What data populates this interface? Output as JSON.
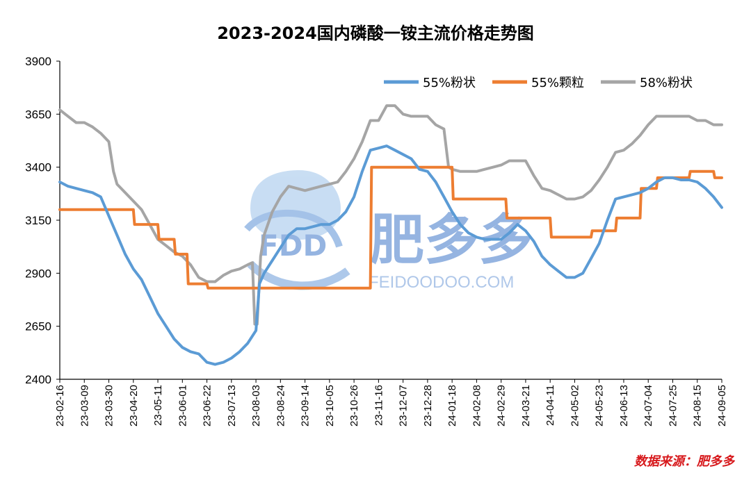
{
  "chart_data": {
    "type": "line",
    "title": "2023-2024国内磷酸一铵主流价格走势图",
    "ylim": [
      2400,
      3900
    ],
    "yticks": [
      2400,
      2650,
      2900,
      3150,
      3400,
      3650,
      3900
    ],
    "xlim": [
      "2023-02-16",
      "2024-09-05"
    ],
    "xticks": [
      "23-02-16",
      "23-03-09",
      "23-03-30",
      "23-04-20",
      "23-05-11",
      "23-06-01",
      "23-06-22",
      "23-07-13",
      "23-08-03",
      "23-08-24",
      "23-09-14",
      "23-10-05",
      "23-10-26",
      "23-11-16",
      "23-12-07",
      "23-12-28",
      "24-01-18",
      "24-02-08",
      "24-02-29",
      "24-03-21",
      "24-04-11",
      "24-05-02",
      "24-05-23",
      "24-06-13",
      "24-07-04",
      "24-07-25",
      "24-08-15",
      "24-09-05"
    ],
    "grid": false,
    "legend_position": "top-right",
    "series": [
      {
        "name": "55%粉状",
        "color": "#5b9bd5",
        "points": [
          [
            "2023-02-16",
            3330
          ],
          [
            "2023-02-23",
            3310
          ],
          [
            "2023-03-02",
            3300
          ],
          [
            "2023-03-09",
            3290
          ],
          [
            "2023-03-16",
            3280
          ],
          [
            "2023-03-23",
            3260
          ],
          [
            "2023-03-30",
            3170
          ],
          [
            "2023-04-06",
            3080
          ],
          [
            "2023-04-13",
            2990
          ],
          [
            "2023-04-20",
            2920
          ],
          [
            "2023-04-27",
            2870
          ],
          [
            "2023-05-04",
            2790
          ],
          [
            "2023-05-11",
            2710
          ],
          [
            "2023-05-18",
            2650
          ],
          [
            "2023-05-25",
            2590
          ],
          [
            "2023-06-01",
            2550
          ],
          [
            "2023-06-08",
            2530
          ],
          [
            "2023-06-15",
            2520
          ],
          [
            "2023-06-22",
            2480
          ],
          [
            "2023-06-29",
            2470
          ],
          [
            "2023-07-06",
            2480
          ],
          [
            "2023-07-13",
            2500
          ],
          [
            "2023-07-20",
            2530
          ],
          [
            "2023-07-27",
            2570
          ],
          [
            "2023-08-03",
            2630
          ],
          [
            "2023-08-06",
            2850
          ],
          [
            "2023-08-10",
            2900
          ],
          [
            "2023-08-17",
            2960
          ],
          [
            "2023-08-24",
            3020
          ],
          [
            "2023-08-31",
            3080
          ],
          [
            "2023-09-07",
            3110
          ],
          [
            "2023-09-14",
            3110
          ],
          [
            "2023-09-21",
            3120
          ],
          [
            "2023-09-28",
            3130
          ],
          [
            "2023-10-05",
            3130
          ],
          [
            "2023-10-12",
            3150
          ],
          [
            "2023-10-19",
            3190
          ],
          [
            "2023-10-26",
            3260
          ],
          [
            "2023-11-02",
            3380
          ],
          [
            "2023-11-09",
            3480
          ],
          [
            "2023-11-16",
            3490
          ],
          [
            "2023-11-23",
            3500
          ],
          [
            "2023-11-30",
            3480
          ],
          [
            "2023-12-07",
            3460
          ],
          [
            "2023-12-14",
            3440
          ],
          [
            "2023-12-21",
            3390
          ],
          [
            "2023-12-28",
            3380
          ],
          [
            "2024-01-04",
            3330
          ],
          [
            "2024-01-11",
            3260
          ],
          [
            "2024-01-18",
            3190
          ],
          [
            "2024-01-25",
            3130
          ],
          [
            "2024-02-01",
            3090
          ],
          [
            "2024-02-08",
            3070
          ],
          [
            "2024-02-15",
            3060
          ],
          [
            "2024-02-22",
            3060
          ],
          [
            "2024-02-29",
            3060
          ],
          [
            "2024-03-07",
            3090
          ],
          [
            "2024-03-14",
            3130
          ],
          [
            "2024-03-21",
            3100
          ],
          [
            "2024-03-28",
            3050
          ],
          [
            "2024-04-04",
            2980
          ],
          [
            "2024-04-11",
            2940
          ],
          [
            "2024-04-18",
            2910
          ],
          [
            "2024-04-25",
            2880
          ],
          [
            "2024-05-02",
            2880
          ],
          [
            "2024-05-09",
            2900
          ],
          [
            "2024-05-16",
            2970
          ],
          [
            "2024-05-23",
            3040
          ],
          [
            "2024-05-30",
            3150
          ],
          [
            "2024-06-06",
            3250
          ],
          [
            "2024-06-13",
            3260
          ],
          [
            "2024-06-20",
            3270
          ],
          [
            "2024-06-27",
            3280
          ],
          [
            "2024-07-04",
            3300
          ],
          [
            "2024-07-11",
            3330
          ],
          [
            "2024-07-18",
            3350
          ],
          [
            "2024-07-25",
            3350
          ],
          [
            "2024-08-01",
            3340
          ],
          [
            "2024-08-08",
            3340
          ],
          [
            "2024-08-15",
            3330
          ],
          [
            "2024-08-22",
            3300
          ],
          [
            "2024-08-29",
            3260
          ],
          [
            "2024-09-05",
            3210
          ]
        ]
      },
      {
        "name": "55%颗粒",
        "color": "#ed7d31",
        "points": [
          [
            "2023-02-16",
            3200
          ],
          [
            "2023-04-20",
            3200
          ],
          [
            "2023-04-21",
            3130
          ],
          [
            "2023-05-11",
            3130
          ],
          [
            "2023-05-12",
            3060
          ],
          [
            "2023-05-25",
            3060
          ],
          [
            "2023-05-26",
            2990
          ],
          [
            "2023-06-05",
            2990
          ],
          [
            "2023-06-06",
            2850
          ],
          [
            "2023-06-22",
            2850
          ],
          [
            "2023-06-23",
            2830
          ],
          [
            "2023-11-09",
            2830
          ],
          [
            "2023-11-10",
            3400
          ],
          [
            "2024-01-18",
            3400
          ],
          [
            "2024-01-19",
            3250
          ],
          [
            "2024-03-04",
            3250
          ],
          [
            "2024-03-05",
            3160
          ],
          [
            "2024-04-11",
            3160
          ],
          [
            "2024-04-12",
            3070
          ],
          [
            "2024-05-16",
            3070
          ],
          [
            "2024-05-17",
            3100
          ],
          [
            "2024-06-06",
            3100
          ],
          [
            "2024-06-07",
            3160
          ],
          [
            "2024-06-27",
            3160
          ],
          [
            "2024-06-28",
            3300
          ],
          [
            "2024-07-11",
            3300
          ],
          [
            "2024-07-12",
            3350
          ],
          [
            "2024-08-08",
            3350
          ],
          [
            "2024-08-09",
            3380
          ],
          [
            "2024-08-29",
            3380
          ],
          [
            "2024-08-30",
            3350
          ],
          [
            "2024-09-05",
            3350
          ]
        ]
      },
      {
        "name": "58%粉状",
        "color": "#a5a5a5",
        "points": [
          [
            "2023-02-16",
            3670
          ],
          [
            "2023-02-23",
            3640
          ],
          [
            "2023-03-02",
            3610
          ],
          [
            "2023-03-09",
            3610
          ],
          [
            "2023-03-16",
            3590
          ],
          [
            "2023-03-23",
            3560
          ],
          [
            "2023-03-30",
            3520
          ],
          [
            "2023-04-03",
            3380
          ],
          [
            "2023-04-06",
            3320
          ],
          [
            "2023-04-13",
            3280
          ],
          [
            "2023-04-20",
            3240
          ],
          [
            "2023-04-27",
            3200
          ],
          [
            "2023-05-04",
            3130
          ],
          [
            "2023-05-11",
            3060
          ],
          [
            "2023-05-18",
            3030
          ],
          [
            "2023-05-25",
            3000
          ],
          [
            "2023-06-01",
            2980
          ],
          [
            "2023-06-08",
            2940
          ],
          [
            "2023-06-15",
            2880
          ],
          [
            "2023-06-22",
            2860
          ],
          [
            "2023-06-29",
            2860
          ],
          [
            "2023-07-06",
            2890
          ],
          [
            "2023-07-13",
            2910
          ],
          [
            "2023-07-20",
            2920
          ],
          [
            "2023-07-27",
            2940
          ],
          [
            "2023-07-31",
            2950
          ],
          [
            "2023-08-02",
            2660
          ],
          [
            "2023-08-04",
            2660
          ],
          [
            "2023-08-07",
            2980
          ],
          [
            "2023-08-10",
            3080
          ],
          [
            "2023-08-17",
            3190
          ],
          [
            "2023-08-24",
            3260
          ],
          [
            "2023-08-31",
            3310
          ],
          [
            "2023-09-07",
            3300
          ],
          [
            "2023-09-14",
            3290
          ],
          [
            "2023-09-21",
            3300
          ],
          [
            "2023-09-28",
            3310
          ],
          [
            "2023-10-05",
            3320
          ],
          [
            "2023-10-12",
            3330
          ],
          [
            "2023-10-19",
            3380
          ],
          [
            "2023-10-26",
            3440
          ],
          [
            "2023-11-02",
            3520
          ],
          [
            "2023-11-09",
            3620
          ],
          [
            "2023-11-16",
            3620
          ],
          [
            "2023-11-23",
            3690
          ],
          [
            "2023-11-30",
            3690
          ],
          [
            "2023-12-07",
            3650
          ],
          [
            "2023-12-14",
            3640
          ],
          [
            "2023-12-21",
            3640
          ],
          [
            "2023-12-28",
            3640
          ],
          [
            "2024-01-04",
            3600
          ],
          [
            "2024-01-11",
            3580
          ],
          [
            "2024-01-15",
            3400
          ],
          [
            "2024-01-18",
            3390
          ],
          [
            "2024-01-25",
            3380
          ],
          [
            "2024-02-01",
            3380
          ],
          [
            "2024-02-08",
            3380
          ],
          [
            "2024-02-15",
            3390
          ],
          [
            "2024-02-22",
            3400
          ],
          [
            "2024-02-29",
            3410
          ],
          [
            "2024-03-07",
            3430
          ],
          [
            "2024-03-14",
            3430
          ],
          [
            "2024-03-21",
            3430
          ],
          [
            "2024-03-28",
            3360
          ],
          [
            "2024-04-04",
            3300
          ],
          [
            "2024-04-11",
            3290
          ],
          [
            "2024-04-18",
            3270
          ],
          [
            "2024-04-25",
            3250
          ],
          [
            "2024-05-02",
            3250
          ],
          [
            "2024-05-09",
            3260
          ],
          [
            "2024-05-16",
            3290
          ],
          [
            "2024-05-23",
            3340
          ],
          [
            "2024-05-30",
            3400
          ],
          [
            "2024-06-06",
            3470
          ],
          [
            "2024-06-13",
            3480
          ],
          [
            "2024-06-20",
            3510
          ],
          [
            "2024-06-27",
            3550
          ],
          [
            "2024-07-04",
            3600
          ],
          [
            "2024-07-11",
            3640
          ],
          [
            "2024-07-18",
            3640
          ],
          [
            "2024-07-25",
            3640
          ],
          [
            "2024-08-01",
            3640
          ],
          [
            "2024-08-08",
            3640
          ],
          [
            "2024-08-15",
            3620
          ],
          [
            "2024-08-22",
            3620
          ],
          [
            "2024-08-29",
            3600
          ],
          [
            "2024-09-05",
            3600
          ]
        ]
      }
    ]
  },
  "watermark": {
    "logo_letters": "FDD",
    "brand": "肥多多",
    "url": "FEIDOODOO.COM"
  },
  "source_note": "数据来源：肥多多"
}
